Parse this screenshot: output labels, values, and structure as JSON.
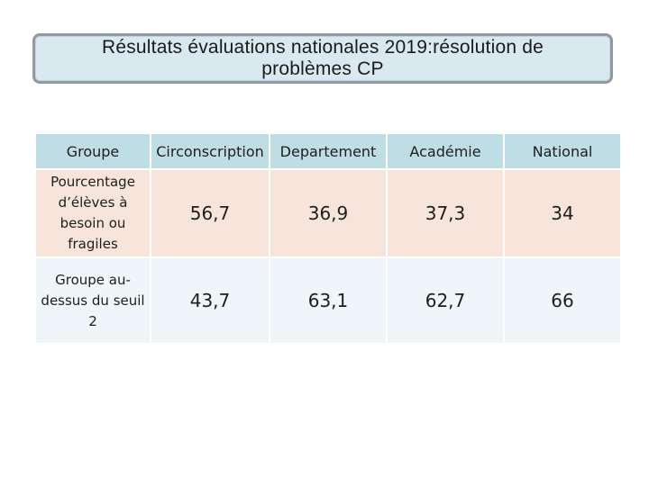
{
  "title": {
    "text": "Résultats évaluations nationales 2019:résolution de problèmes CP"
  },
  "table": {
    "headers": [
      "Groupe",
      "Circonscription",
      "Departement",
      "Académie",
      "National"
    ],
    "rows": [
      {
        "label": "Pourcentage d’élèves à besoin ou fragiles",
        "values": [
          "56,7",
          "36,9",
          "37,3",
          "34"
        ]
      },
      {
        "label": "Groupe au-dessus du seuil 2",
        "values": [
          "43,7",
          "63,1",
          "62,7",
          "66"
        ]
      }
    ]
  },
  "colors": {
    "header_bg": "#bfdde5",
    "row1_bg": "#f7e5dc",
    "row2_bg": "#eff5f8",
    "title_bg": "#d9e9f0",
    "title_border": "#8f9aa6"
  }
}
